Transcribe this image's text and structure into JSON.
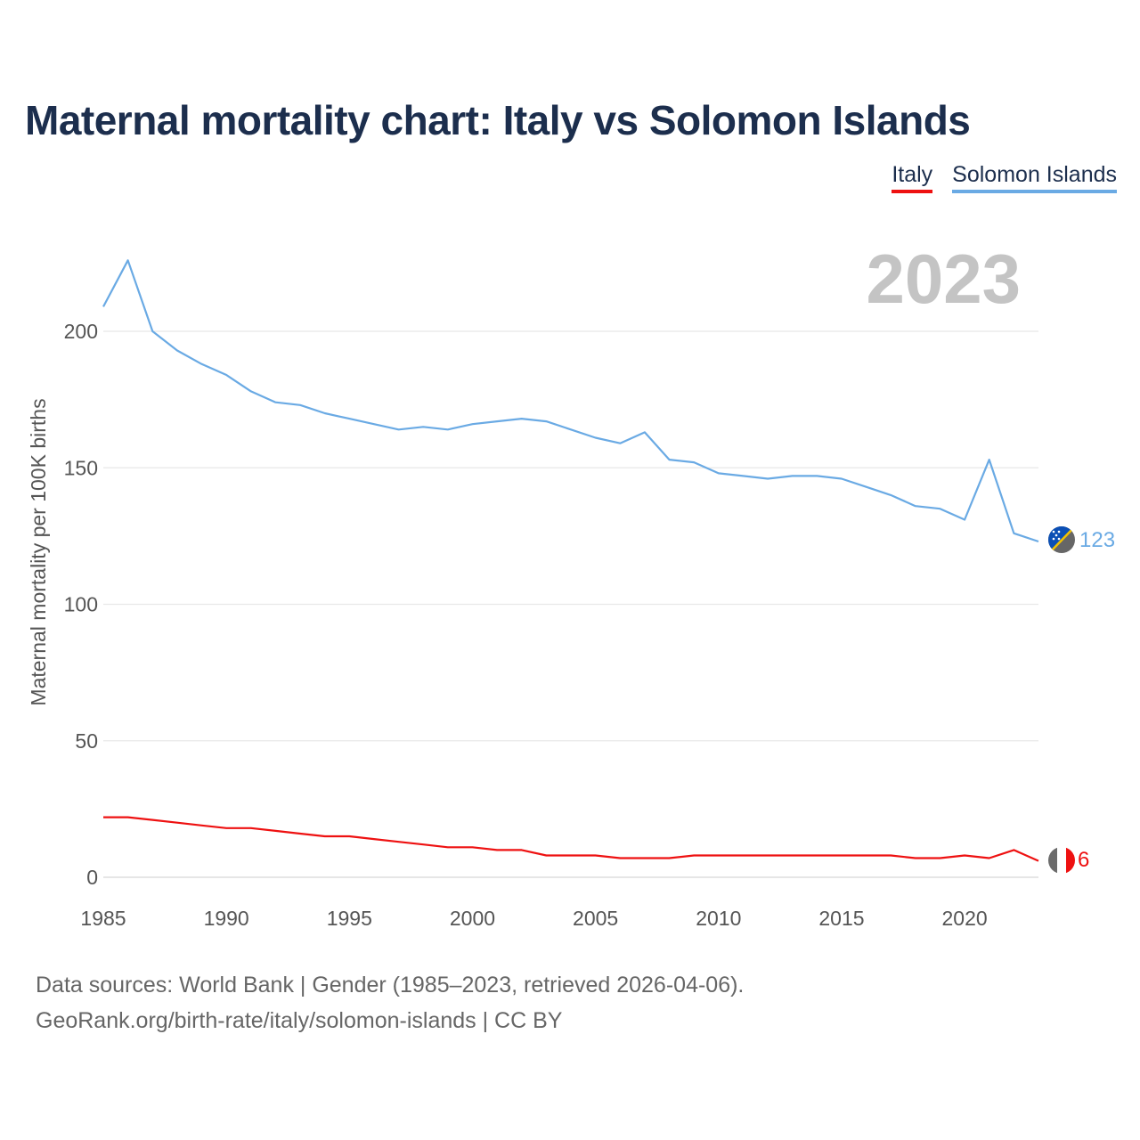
{
  "title": "Maternal mortality chart: Italy vs Solomon Islands",
  "legend": [
    {
      "name": "Italy",
      "color": "#ee1111"
    },
    {
      "name": "Solomon Islands",
      "color": "#6aaae4"
    }
  ],
  "footer": {
    "line1": "Data sources: World Bank | Gender (1985–2023, retrieved 2026-04-06).",
    "line2": "GeoRank.org/birth-rate/italy/solomon-islands | CC BY"
  },
  "chart_data": {
    "type": "line",
    "title": "Maternal mortality chart: Italy vs Solomon Islands",
    "xlabel": "",
    "ylabel": "Maternal mortality per 100K births",
    "year_label": "2023",
    "xlim": [
      1985,
      2023
    ],
    "ylim": [
      0,
      230
    ],
    "x_ticks": [
      1985,
      1990,
      1995,
      2000,
      2005,
      2010,
      2015,
      2020
    ],
    "y_ticks": [
      0,
      50,
      100,
      150,
      200
    ],
    "grid": true,
    "x": [
      1985,
      1986,
      1987,
      1988,
      1989,
      1990,
      1991,
      1992,
      1993,
      1994,
      1995,
      1996,
      1997,
      1998,
      1999,
      2000,
      2001,
      2002,
      2003,
      2004,
      2005,
      2006,
      2007,
      2008,
      2009,
      2010,
      2011,
      2012,
      2013,
      2014,
      2015,
      2016,
      2017,
      2018,
      2019,
      2020,
      2021,
      2022,
      2023
    ],
    "series": [
      {
        "name": "Italy",
        "color": "#ee1111",
        "end_label": "6",
        "values": [
          22,
          22,
          21,
          20,
          19,
          18,
          18,
          17,
          16,
          15,
          15,
          14,
          13,
          12,
          11,
          11,
          10,
          10,
          8,
          8,
          8,
          7,
          7,
          7,
          8,
          8,
          8,
          8,
          8,
          8,
          8,
          8,
          8,
          7,
          7,
          8,
          7,
          10,
          6
        ]
      },
      {
        "name": "Solomon Islands",
        "color": "#6aaae4",
        "end_label": "123",
        "values": [
          209,
          226,
          200,
          193,
          188,
          184,
          178,
          174,
          173,
          170,
          168,
          166,
          164,
          165,
          164,
          166,
          167,
          168,
          167,
          164,
          161,
          159,
          163,
          153,
          152,
          148,
          147,
          146,
          147,
          147,
          146,
          143,
          140,
          136,
          135,
          131,
          153,
          126,
          123
        ]
      }
    ]
  }
}
